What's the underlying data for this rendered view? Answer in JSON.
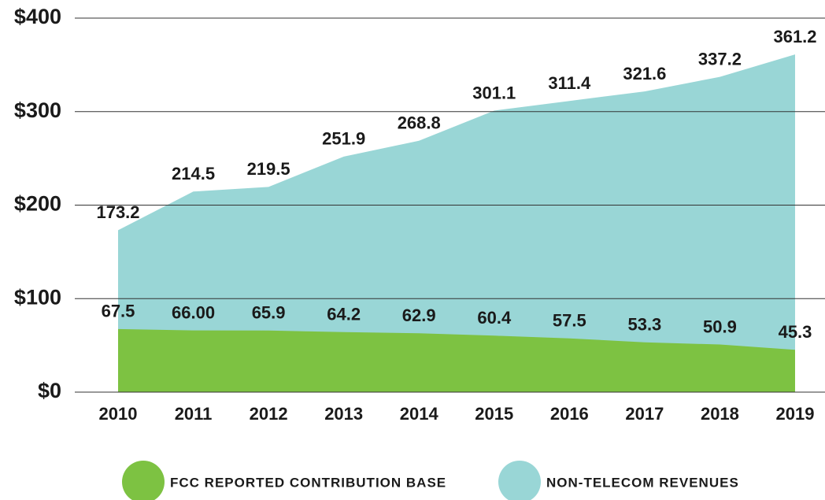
{
  "chart_data": {
    "type": "area",
    "categories": [
      "2010",
      "2011",
      "2012",
      "2013",
      "2014",
      "2015",
      "2016",
      "2017",
      "2018",
      "2019"
    ],
    "series": [
      {
        "name": "NON-TELECOM REVENUES",
        "color": "#99d6d6",
        "values": [
          173.2,
          214.5,
          219.5,
          251.9,
          268.8,
          301.1,
          311.4,
          321.6,
          337.2,
          361.2
        ]
      },
      {
        "name": "FCC REPORTED CONTRIBUTION BASE",
        "color": "#7dc242",
        "values": [
          67.5,
          66.0,
          65.9,
          64.2,
          62.9,
          60.4,
          57.5,
          53.3,
          50.9,
          45.3
        ],
        "value_labels": [
          "67.5",
          "66.00",
          "65.9",
          "64.2",
          "62.9",
          "60.4",
          "57.5",
          "53.3",
          "50.9",
          "45.3"
        ]
      }
    ],
    "ylim": [
      0,
      400
    ],
    "yticks": [
      {
        "value": 0,
        "label": "$0"
      },
      {
        "value": 100,
        "label": "$100"
      },
      {
        "value": 200,
        "label": "$200"
      },
      {
        "value": 300,
        "label": "$300"
      },
      {
        "value": 400,
        "label": "$400"
      }
    ],
    "grid": true
  }
}
